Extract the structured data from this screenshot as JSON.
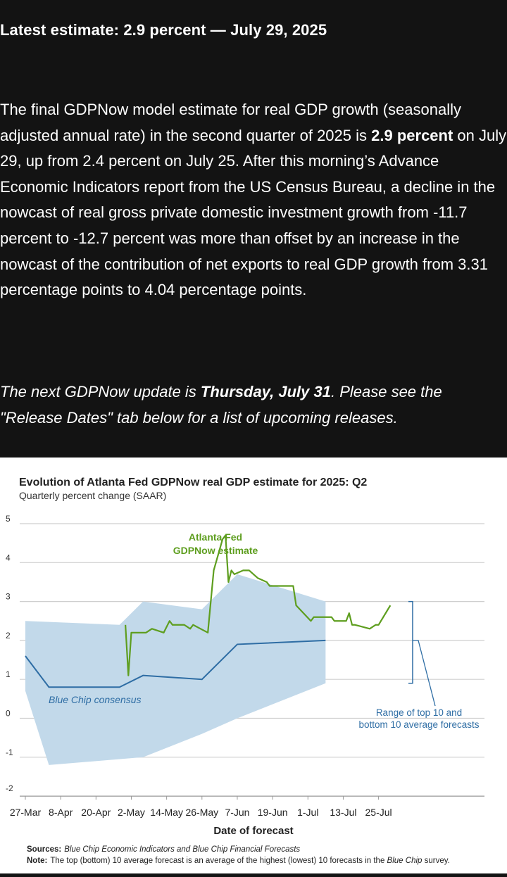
{
  "headline": "Latest estimate: 2.9 percent — July 29, 2025",
  "paragraph": {
    "part1": "The final GDPNow model estimate for real GDP growth (seasonally adjusted annual rate) in the second quarter of 2025 is ",
    "bold": "2.9 percent",
    "part2": " on July 29, up from 2.4 percent on July 25. After this morning’s Advance Economic Indicators report from the US Census Bureau, a decline in the nowcast of real gross private domestic investment growth from -11.7 percent to -12.7 percent was more than offset by an increase in the nowcast of the contribution of net exports to real GDP growth from 3.31 percentage points to 4.04 percentage points."
  },
  "next_update": {
    "part1": "The next GDPNow update is ",
    "bold": "Thursday, July 31",
    "part2": ". Please see the \"Release Dates\" tab below for a list of upcoming releases."
  },
  "chart_data": {
    "type": "line",
    "title": "Evolution of Atlanta Fed GDPNow real GDP estimate for 2025: Q2",
    "subtitle": "Quarterly percent change (SAAR)",
    "xlabel": "Date of forecast",
    "ylabel": "",
    "ylim": [
      -2,
      5
    ],
    "yticks": [
      "5",
      "4",
      "3",
      "2",
      "1",
      "0",
      "-1",
      "-2"
    ],
    "xticks": [
      "27-Mar",
      "8-Apr",
      "20-Apr",
      "2-May",
      "14-May",
      "26-May",
      "7-Jun",
      "19-Jun",
      "1-Jul",
      "13-Jul",
      "25-Jul"
    ],
    "x_start": "2025-03-27",
    "grid": true,
    "colors": {
      "gdpnow": "#5e9e1f",
      "consensus": "#2e6da4",
      "range": "#c2d9ea",
      "grid": "#cfcfcf"
    },
    "series": [
      {
        "name": "Atlanta Fed GDPNow estimate",
        "label_lines": [
          "Atlanta Fed",
          "GDPNow estimate"
        ],
        "points": [
          [
            "2025-04-30",
            2.4
          ],
          [
            "2025-05-01",
            1.1
          ],
          [
            "2025-05-02",
            2.2
          ],
          [
            "2025-05-05",
            2.2
          ],
          [
            "2025-05-07",
            2.2
          ],
          [
            "2025-05-09",
            2.3
          ],
          [
            "2025-05-13",
            2.2
          ],
          [
            "2025-05-15",
            2.5
          ],
          [
            "2025-05-16",
            2.4
          ],
          [
            "2025-05-20",
            2.4
          ],
          [
            "2025-05-22",
            2.3
          ],
          [
            "2025-05-23",
            2.4
          ],
          [
            "2025-05-28",
            2.2
          ],
          [
            "2025-05-30",
            3.8
          ],
          [
            "2025-06-02",
            4.6
          ],
          [
            "2025-06-03",
            4.7
          ],
          [
            "2025-06-04",
            3.5
          ],
          [
            "2025-06-05",
            3.8
          ],
          [
            "2025-06-06",
            3.7
          ],
          [
            "2025-06-09",
            3.8
          ],
          [
            "2025-06-11",
            3.8
          ],
          [
            "2025-06-14",
            3.6
          ],
          [
            "2025-06-17",
            3.5
          ],
          [
            "2025-06-18",
            3.4
          ],
          [
            "2025-06-26",
            3.4
          ],
          [
            "2025-06-27",
            2.9
          ],
          [
            "2025-07-02",
            2.5
          ],
          [
            "2025-07-03",
            2.6
          ],
          [
            "2025-07-09",
            2.6
          ],
          [
            "2025-07-10",
            2.5
          ],
          [
            "2025-07-14",
            2.5
          ],
          [
            "2025-07-15",
            2.7
          ],
          [
            "2025-07-16",
            2.4
          ],
          [
            "2025-07-17",
            2.4
          ],
          [
            "2025-07-22",
            2.3
          ],
          [
            "2025-07-24",
            2.4
          ],
          [
            "2025-07-25",
            2.4
          ],
          [
            "2025-07-29",
            2.9
          ]
        ]
      },
      {
        "name": "Blue Chip consensus",
        "points": [
          [
            "2025-03-27",
            1.6
          ],
          [
            "2025-04-04",
            0.8
          ],
          [
            "2025-04-28",
            0.8
          ],
          [
            "2025-05-06",
            1.1
          ],
          [
            "2025-05-26",
            1.0
          ],
          [
            "2025-06-07",
            1.9
          ],
          [
            "2025-07-07",
            2.0
          ]
        ]
      }
    ],
    "range_band": {
      "name": "Range of top 10 and bottom 10 average forecasts",
      "label_lines": [
        "Range of top 10 and",
        "bottom 10 average forecasts"
      ],
      "upper": [
        [
          "2025-03-27",
          2.5
        ],
        [
          "2025-04-28",
          2.4
        ],
        [
          "2025-05-06",
          3.0
        ],
        [
          "2025-05-26",
          2.8
        ],
        [
          "2025-06-07",
          3.7
        ],
        [
          "2025-07-07",
          3.0
        ]
      ],
      "lower": [
        [
          "2025-03-27",
          0.7
        ],
        [
          "2025-04-04",
          -1.2
        ],
        [
          "2025-05-06",
          -1.0
        ],
        [
          "2025-05-26",
          -0.4
        ],
        [
          "2025-06-07",
          0.0
        ],
        [
          "2025-07-07",
          0.9
        ]
      ]
    },
    "notes": {
      "sources_label": "Sources:",
      "sources_text": "Blue Chip Economic Indicators and Blue Chip Financial Forecasts",
      "note_label": "Note:",
      "note_text_1": "The top (bottom) 10 average forecast is an average of the highest (lowest) 10 forecasts in the ",
      "note_italic": "Blue Chip",
      "note_text_2": " survey."
    }
  }
}
